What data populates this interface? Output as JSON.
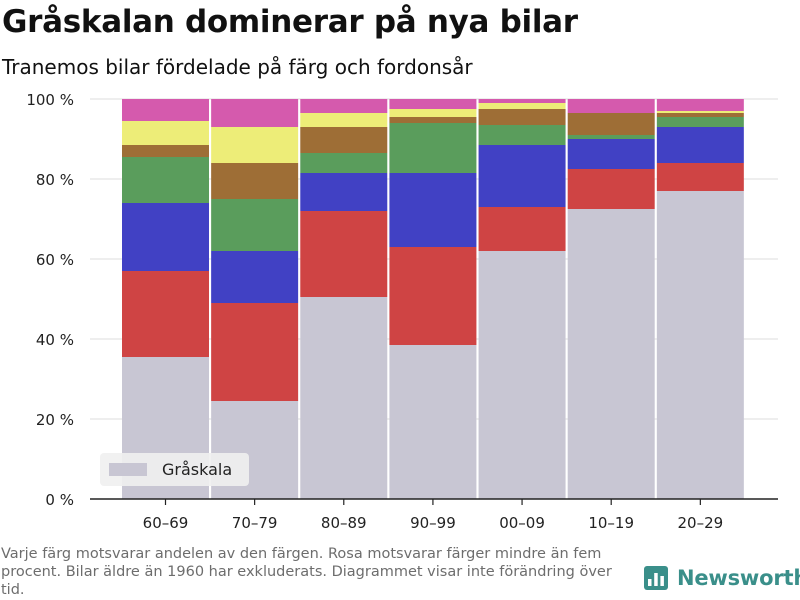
{
  "title": "Gråskalan dominerar på nya bilar",
  "subtitle": "Tranemos bilar fördelade på färg och fordonsår",
  "note": "Varje färg motsvarar andelen av den färgen. Rosa motsvarar färger mindre än fem procent. Bilar äldre än 1960 har exkluderats. Diagrammet visar inte förändring över tid.",
  "brand": {
    "name": "Newsworthy",
    "icon": "bar-chart-logo-icon",
    "color": "#3a8f8a"
  },
  "chart_data": {
    "type": "bar",
    "stacked": true,
    "categories": [
      "60–69",
      "70–79",
      "80–89",
      "90–99",
      "00–09",
      "10–19",
      "20–29"
    ],
    "yticks": [
      "0 %",
      "20 %",
      "40 %",
      "60 %",
      "80 %",
      "100 %"
    ],
    "ylim": [
      0,
      100
    ],
    "grid": true,
    "legend_position": "bottom-left",
    "legend": [
      {
        "label": "Gråskala",
        "color": "#c8c6d3"
      }
    ],
    "series": [
      {
        "name": "Gråskala",
        "color": "#c8c6d3",
        "values": [
          35.5,
          24.5,
          50.5,
          38.5,
          62,
          72.5,
          77
        ]
      },
      {
        "color": "#cf4444",
        "values": [
          21.5,
          24.5,
          21.5,
          24.5,
          11,
          10,
          7
        ]
      },
      {
        "color": "#4141c4",
        "values": [
          17,
          13,
          9.5,
          18.5,
          15.5,
          7.5,
          9
        ]
      },
      {
        "color": "#5a9d5c",
        "values": [
          11.5,
          13,
          5,
          12.5,
          5,
          1,
          2.5
        ]
      },
      {
        "color": "#9e6e36",
        "values": [
          3,
          9,
          6.5,
          1.5,
          4,
          5.5,
          1
        ]
      },
      {
        "color": "#eded78",
        "values": [
          6,
          9,
          3.5,
          2,
          1.5,
          0,
          0.5
        ]
      },
      {
        "color": "#d55aad",
        "values": [
          5.5,
          7,
          3.5,
          2.5,
          1,
          3.5,
          3
        ]
      }
    ]
  }
}
